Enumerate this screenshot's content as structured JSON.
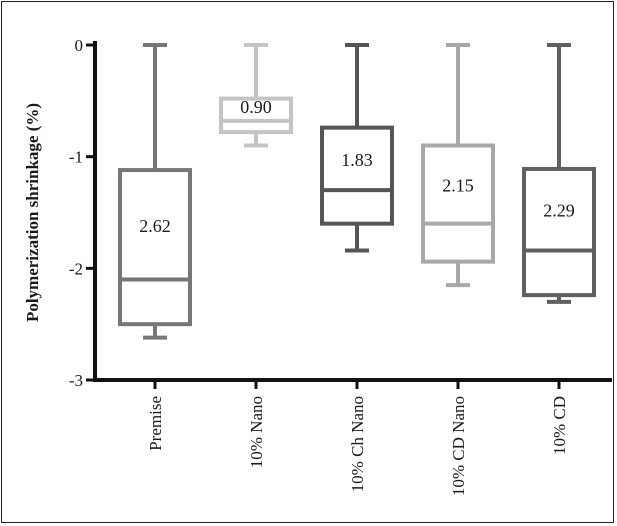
{
  "chart_data": {
    "type": "boxplot",
    "ylabel": "Polymerization shrinkage (%)",
    "xlabel": "",
    "title": "",
    "ylim": [
      -3,
      0
    ],
    "yticks": [
      "0",
      "-1",
      "-2",
      "-3"
    ],
    "ytick_values": [
      0,
      -1,
      -2,
      -3
    ],
    "categories": [
      "Premise",
      "10% Nano",
      "10% Ch Nano",
      "10% CD Nano",
      "10% CD"
    ],
    "boxes": [
      {
        "category": "Premise",
        "label": "2.62",
        "whisker_high": 0,
        "q3": -1.12,
        "median": -2.1,
        "q1": -2.5,
        "whisker_low": -2.62,
        "color": "#777777"
      },
      {
        "category": "10% Nano",
        "label": "0.90",
        "whisker_high": 0,
        "q3": -0.48,
        "median": -0.68,
        "q1": -0.78,
        "whisker_low": -0.9,
        "color": "#c4c4c4"
      },
      {
        "category": "10% Ch Nano",
        "label": "1.83",
        "whisker_high": 0,
        "q3": -0.74,
        "median": -1.3,
        "q1": -1.6,
        "whisker_low": -1.84,
        "color": "#555555"
      },
      {
        "category": "10% CD Nano",
        "label": "2.15",
        "whisker_high": 0,
        "q3": -0.9,
        "median": -1.6,
        "q1": -1.94,
        "whisker_low": -2.15,
        "color": "#a8a8a8"
      },
      {
        "category": "10% CD",
        "label": "2.29",
        "whisker_high": 0,
        "q3": -1.11,
        "median": -1.84,
        "q1": -2.24,
        "whisker_low": -2.3,
        "color": "#606060"
      }
    ],
    "grid": false,
    "legend": "none"
  }
}
